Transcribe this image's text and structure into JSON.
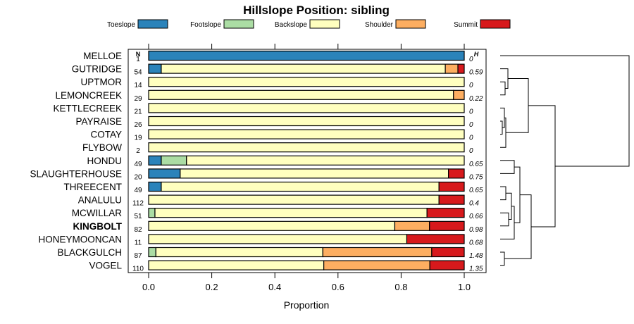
{
  "chart_data": {
    "type": "bar",
    "stacked": true,
    "orientation": "horizontal",
    "title": "Hillslope Position: sibling",
    "xlabel": "Proportion",
    "xlim": [
      0,
      1
    ],
    "xticks": [
      "0.0",
      "0.2",
      "0.4",
      "0.6",
      "0.8",
      "1.0"
    ],
    "n_header": "N",
    "h_header": "H",
    "legend": [
      {
        "name": "Toeslope",
        "color": "#2b83ba"
      },
      {
        "name": "Footslope",
        "color": "#abdda4"
      },
      {
        "name": "Backslope",
        "color": "#ffffbf"
      },
      {
        "name": "Shoulder",
        "color": "#fdae61"
      },
      {
        "name": "Summit",
        "color": "#d7191c"
      }
    ],
    "rows": [
      {
        "label": "MELLOE",
        "n": "1",
        "h": "0",
        "bold": false,
        "values": [
          1.0,
          0,
          0,
          0,
          0
        ]
      },
      {
        "label": "GUTRIDGE",
        "n": "54",
        "h": "0.59",
        "bold": false,
        "values": [
          0.04,
          0,
          0.9,
          0.04,
          0.02
        ]
      },
      {
        "label": "UPTMOR",
        "n": "14",
        "h": "0",
        "bold": false,
        "values": [
          0,
          0,
          1.0,
          0,
          0
        ]
      },
      {
        "label": "LEMONCREEK",
        "n": "29",
        "h": "0.22",
        "bold": false,
        "values": [
          0,
          0,
          0.966,
          0.034,
          0
        ]
      },
      {
        "label": "KETTLECREEK",
        "n": "21",
        "h": "0",
        "bold": false,
        "values": [
          0,
          0,
          1.0,
          0,
          0
        ]
      },
      {
        "label": "PAYRAISE",
        "n": "26",
        "h": "0",
        "bold": false,
        "values": [
          0,
          0,
          1.0,
          0,
          0
        ]
      },
      {
        "label": "COTAY",
        "n": "19",
        "h": "0",
        "bold": false,
        "values": [
          0,
          0,
          1.0,
          0,
          0
        ]
      },
      {
        "label": "FLYBOW",
        "n": "2",
        "h": "0",
        "bold": false,
        "values": [
          0,
          0,
          1.0,
          0,
          0
        ]
      },
      {
        "label": "HONDU",
        "n": "49",
        "h": "0.65",
        "bold": false,
        "values": [
          0.04,
          0.08,
          0.88,
          0,
          0
        ]
      },
      {
        "label": "SLAUGHTERHOUSE",
        "n": "20",
        "h": "0.75",
        "bold": false,
        "values": [
          0.1,
          0,
          0.85,
          0,
          0.05
        ]
      },
      {
        "label": "THREECENT",
        "n": "49",
        "h": "0.65",
        "bold": false,
        "values": [
          0.04,
          0,
          0.88,
          0,
          0.08
        ]
      },
      {
        "label": "ANALULU",
        "n": "112",
        "h": "0.4",
        "bold": false,
        "values": [
          0,
          0,
          0.92,
          0,
          0.08
        ]
      },
      {
        "label": "MCWILLAR",
        "n": "51",
        "h": "0.66",
        "bold": false,
        "values": [
          0,
          0.02,
          0.862,
          0,
          0.118
        ]
      },
      {
        "label": "KINGBOLT",
        "n": "82",
        "h": "0.98",
        "bold": true,
        "values": [
          0,
          0,
          0.78,
          0.11,
          0.11
        ]
      },
      {
        "label": "HONEYMOONCAN",
        "n": "11",
        "h": "0.68",
        "bold": false,
        "values": [
          0,
          0,
          0.818,
          0,
          0.182
        ]
      },
      {
        "label": "BLACKGULCH",
        "n": "87",
        "h": "1.48",
        "bold": false,
        "values": [
          0,
          0.023,
          0.529,
          0.345,
          0.103
        ]
      },
      {
        "label": "VOGEL",
        "n": "110",
        "h": "1.35",
        "bold": false,
        "values": [
          0,
          0,
          0.555,
          0.336,
          0.109
        ]
      }
    ]
  }
}
